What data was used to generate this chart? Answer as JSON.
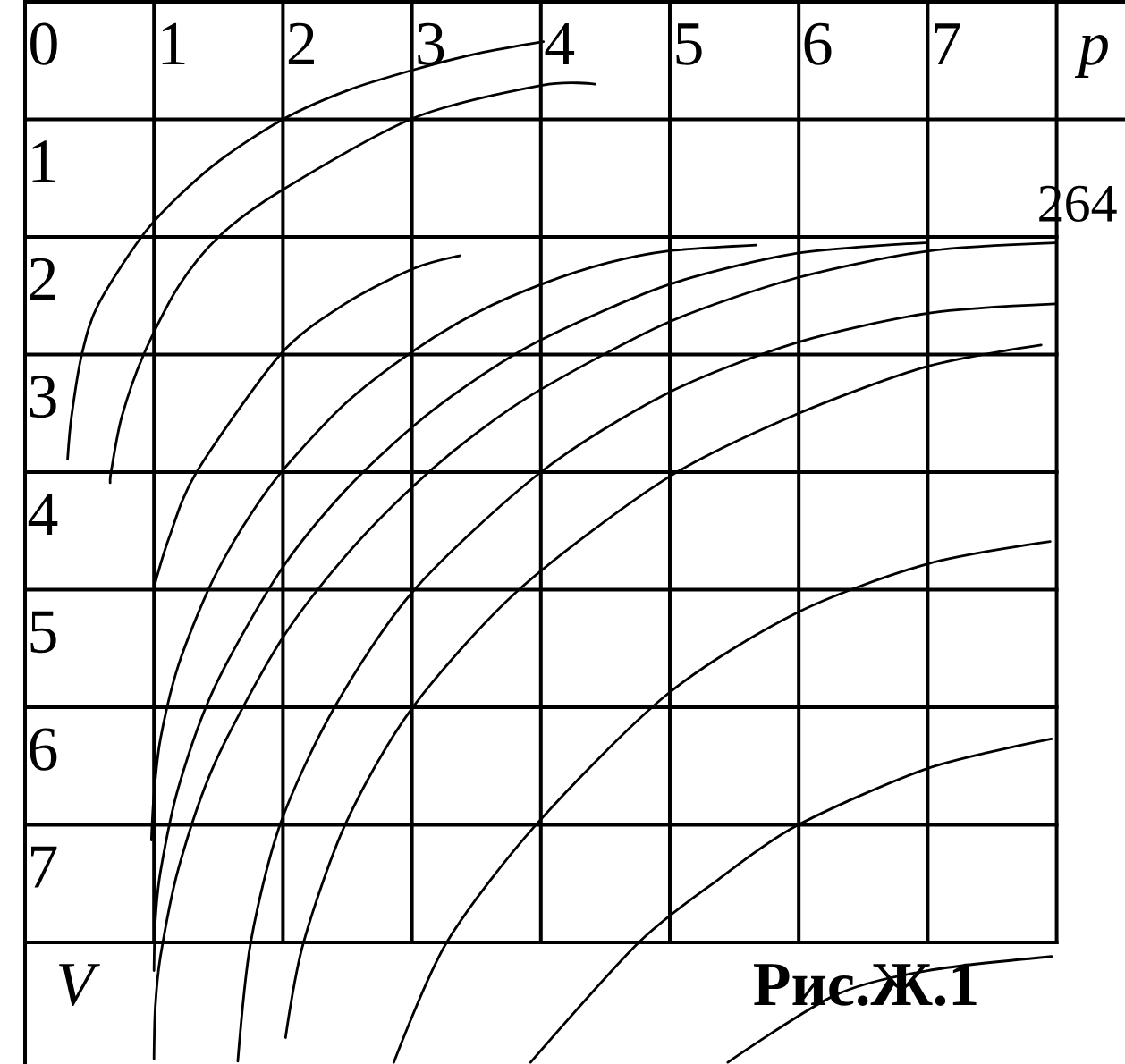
{
  "chart_data": {
    "type": "line",
    "title": "Рис.Ж.1",
    "xlabel": "p",
    "ylabel": "V",
    "annotations": [
      "264"
    ],
    "xlim": [
      0,
      8.53
    ],
    "ylim": [
      9.03,
      0
    ],
    "xticks": [
      0,
      1,
      2,
      3,
      4,
      5,
      6,
      7
    ],
    "yticks": [
      1,
      2,
      3,
      4,
      5,
      6,
      7
    ],
    "grid": true,
    "line_style": "solid",
    "series": [
      {
        "color": "#000000",
        "x": [
          0.33,
          0.36,
          0.44,
          0.57,
          0.96,
          1.45,
          2.0,
          2.51,
          3.01,
          3.51,
          4.02
        ],
        "values": [
          3.89,
          3.53,
          3.0,
          2.57,
          1.92,
          1.4,
          1.0,
          0.75,
          0.58,
          0.44,
          0.34
        ]
      },
      {
        "color": "#000000",
        "x": [
          0.66,
          0.67,
          0.75,
          0.92,
          1.19,
          1.51,
          1.98,
          3.01,
          4.01,
          4.42
        ],
        "values": [
          4.09,
          3.98,
          3.53,
          3.0,
          2.42,
          1.99,
          1.61,
          0.99,
          0.71,
          0.7
        ]
      },
      {
        "color": "#000000",
        "x": [
          1.01,
          1.12,
          1.33,
          1.98,
          2.48,
          3.01,
          3.37
        ],
        "values": [
          4.94,
          4.55,
          4.0,
          3.0,
          2.57,
          2.27,
          2.16
        ]
      },
      {
        "color": "#000000",
        "x": [
          0.98,
          1.0,
          1.05,
          1.19,
          1.43,
          1.68,
          1.98,
          2.48,
          3.01,
          3.51,
          4.01,
          4.52,
          4.98,
          5.67
        ],
        "values": [
          7.13,
          6.74,
          6.27,
          5.64,
          4.98,
          4.48,
          4.01,
          3.42,
          2.97,
          2.64,
          2.4,
          2.22,
          2.12,
          2.07
        ]
      },
      {
        "color": "#000000",
        "x": [
          1.0,
          1.01,
          1.05,
          1.19,
          1.47,
          1.98,
          2.48,
          3.01,
          3.51,
          4.01,
          4.98,
          5.98,
          6.98
        ],
        "values": [
          8.24,
          7.82,
          7.4,
          6.68,
          5.83,
          4.84,
          4.16,
          3.61,
          3.2,
          2.87,
          2.41,
          2.14,
          2.05
        ]
      },
      {
        "color": "#000000",
        "x": [
          1.0,
          1.01,
          1.05,
          1.19,
          1.47,
          1.98,
          2.48,
          3.01,
          3.51,
          4.01,
          4.98,
          5.98,
          7.0,
          7.99
        ],
        "values": [
          8.99,
          8.55,
          8.12,
          7.37,
          6.48,
          5.44,
          4.72,
          4.12,
          3.66,
          3.29,
          2.73,
          2.35,
          2.12,
          2.05
        ]
      },
      {
        "color": "#000000",
        "x": [
          1.65,
          1.75,
          1.98,
          2.4,
          3.02,
          4.0,
          4.98,
          5.98,
          7.0,
          7.99
        ],
        "values": [
          9.01,
          8.0,
          6.99,
          6.0,
          5.0,
          4.0,
          3.33,
          2.9,
          2.65,
          2.57
        ]
      },
      {
        "color": "#000000",
        "x": [
          2.02,
          2.16,
          2.49,
          3.0,
          3.83,
          4.98,
          5.98,
          7.0,
          7.88
        ],
        "values": [
          8.81,
          8.0,
          6.98,
          6.01,
          5.0,
          4.05,
          3.51,
          3.1,
          2.92
        ]
      },
      {
        "color": "#000000",
        "x": [
          2.86,
          3.27,
          3.97,
          4.98,
          5.98,
          7.0,
          7.95
        ],
        "values": [
          9.02,
          8.0,
          6.99,
          5.89,
          5.2,
          4.78,
          4.59
        ]
      },
      {
        "color": "#000000",
        "x": [
          3.92,
          4.76,
          5.37,
          5.98,
          7.0,
          7.96
        ],
        "values": [
          9.02,
          8.0,
          7.47,
          7.01,
          6.52,
          6.27
        ]
      },
      {
        "color": "#000000",
        "x": [
          5.45,
          6.28,
          7.0,
          7.96
        ],
        "values": [
          9.02,
          8.45,
          8.24,
          8.12
        ]
      }
    ]
  }
}
